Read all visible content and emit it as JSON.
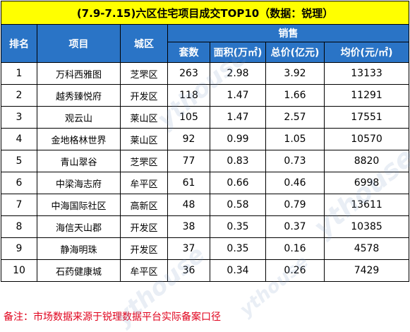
{
  "title": "(7.9-7.15)六区住宅项目成交TOP10（数据：锐理）",
  "headers": {
    "rank": "排名",
    "project": "项目",
    "district": "城区",
    "sales": "销售",
    "units": "套数",
    "area": "面积(万㎡)",
    "total": "总价(亿元)",
    "avg": "均价(元/㎡)"
  },
  "rows": [
    {
      "rank": "1",
      "project": "万科西雅图",
      "district": "芝罘区",
      "units": "263",
      "area": "2.98",
      "total": "3.92",
      "avg": "13133"
    },
    {
      "rank": "2",
      "project": "越秀臻悦府",
      "district": "开发区",
      "units": "118",
      "area": "1.47",
      "total": "1.66",
      "avg": "11291"
    },
    {
      "rank": "3",
      "project": "观云山",
      "district": "莱山区",
      "units": "105",
      "area": "1.47",
      "total": "2.57",
      "avg": "17551"
    },
    {
      "rank": "4",
      "project": "金地格林世界",
      "district": "莱山区",
      "units": "92",
      "area": "0.99",
      "total": "1.05",
      "avg": "10570"
    },
    {
      "rank": "5",
      "project": "青山翠谷",
      "district": "芝罘区",
      "units": "77",
      "area": "0.83",
      "total": "0.73",
      "avg": "8820"
    },
    {
      "rank": "6",
      "project": "中梁海志府",
      "district": "牟平区",
      "units": "61",
      "area": "0.66",
      "total": "0.46",
      "avg": "6998"
    },
    {
      "rank": "7",
      "project": "中海国际社区",
      "district": "高新区",
      "units": "48",
      "area": "0.58",
      "total": "0.79",
      "avg": "13611"
    },
    {
      "rank": "8",
      "project": "海信天山郡",
      "district": "开发区",
      "units": "38",
      "area": "0.35",
      "total": "0.37",
      "avg": "10385"
    },
    {
      "rank": "9",
      "project": "静海明珠",
      "district": "开发区",
      "units": "37",
      "area": "0.35",
      "total": "0.16",
      "avg": "4578"
    },
    {
      "rank": "10",
      "project": "石药健康城",
      "district": "牟平区",
      "units": "36",
      "area": "0.34",
      "total": "0.26",
      "avg": "7429"
    }
  ],
  "footnote": "备注：市场数据来源于锐理数据平台实际备案口径",
  "watermark": "ythouse",
  "colors": {
    "title_bg": "#ffff00",
    "header_bg": "#2a74c6",
    "footnote": "#e0001b"
  }
}
